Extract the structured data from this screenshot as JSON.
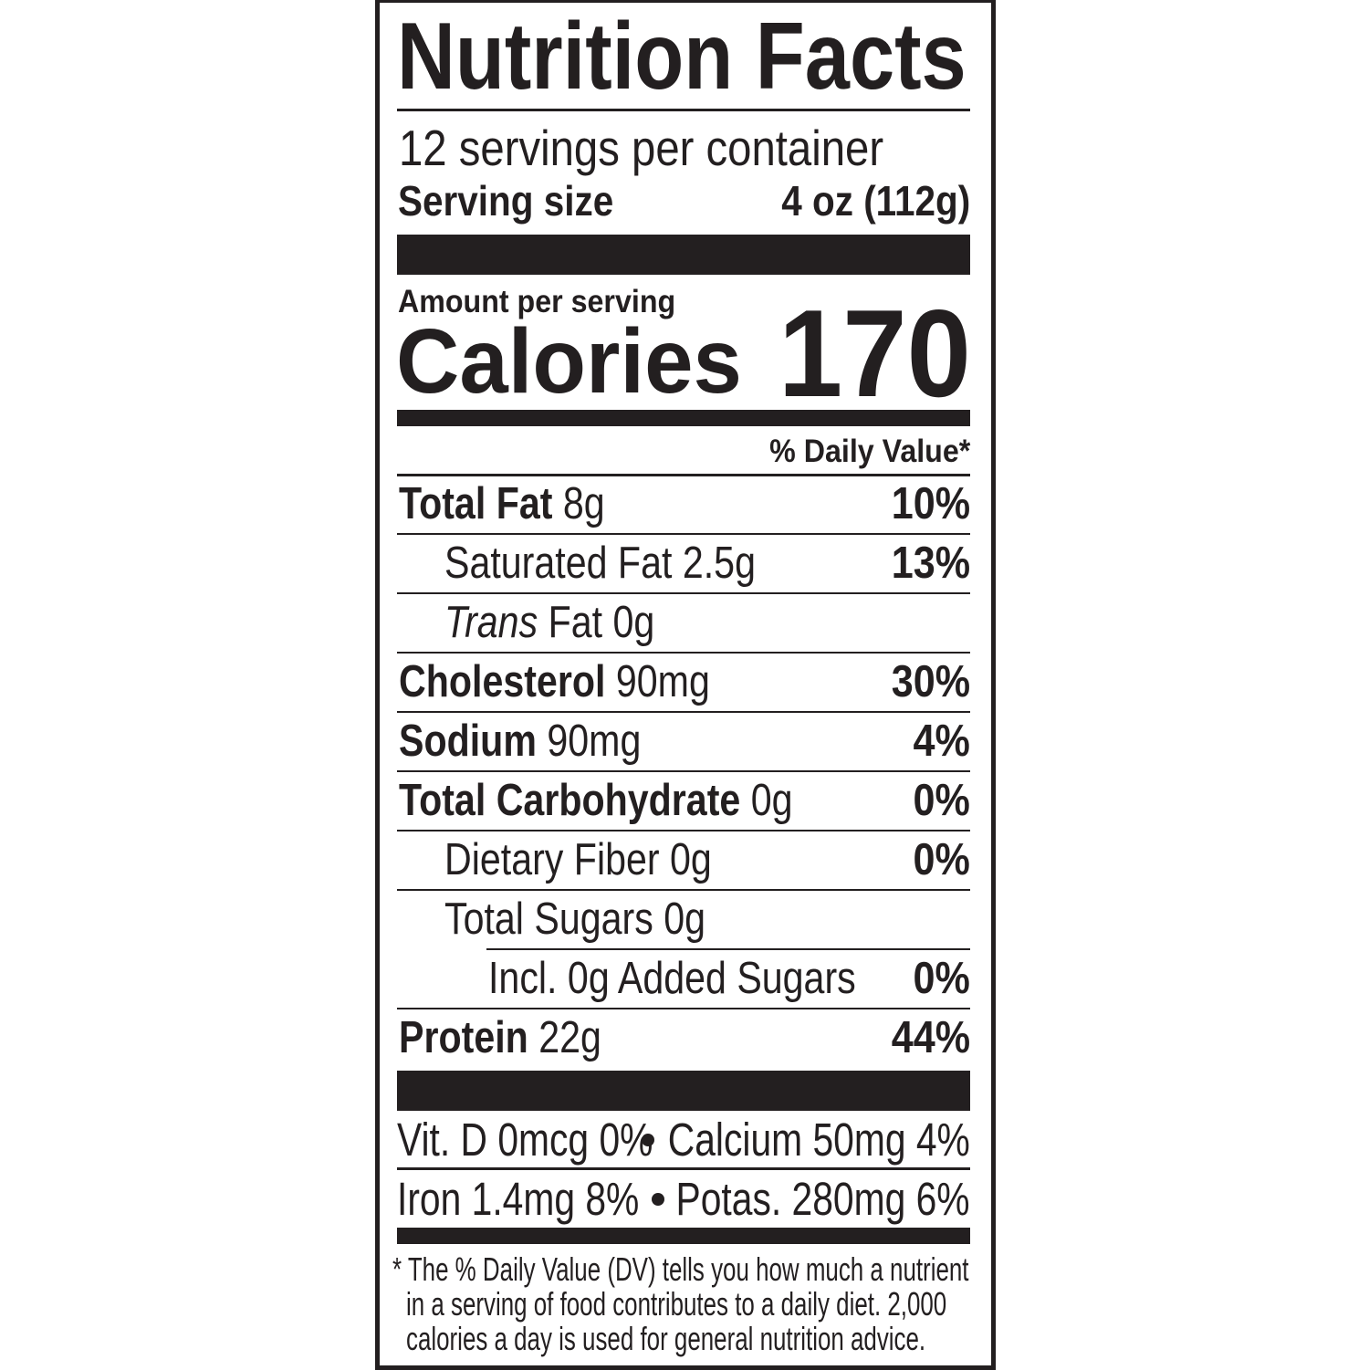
{
  "label": {
    "title": "Nutrition Facts",
    "servings_per_container": "12 servings per container",
    "serving_size_label": "Serving size",
    "serving_size_value": "4 oz (112g)",
    "amount_per_serving": "Amount per serving",
    "calories_label": "Calories",
    "calories_value": "170",
    "daily_value_header": "% Daily Value*"
  },
  "nutrients": [
    {
      "level": 0,
      "label": "Total Fat",
      "amount": "8g",
      "dv": "10%"
    },
    {
      "level": 1,
      "label": "Saturated Fat",
      "amount": "2.5g",
      "dv": "13%"
    },
    {
      "level": 1,
      "label_italic": "Trans",
      "label": "Fat",
      "amount": "0g",
      "dv": ""
    },
    {
      "level": 0,
      "label": "Cholesterol",
      "amount": "90mg",
      "dv": "30%"
    },
    {
      "level": 0,
      "label": "Sodium",
      "amount": "90mg",
      "dv": "4%"
    },
    {
      "level": 0,
      "label": "Total Carbohydrate",
      "amount": "0g",
      "dv": "0%"
    },
    {
      "level": 1,
      "label": "Dietary Fiber",
      "amount": "0g",
      "dv": "0%"
    },
    {
      "level": 1,
      "label": "Total Sugars",
      "amount": "0g",
      "dv": ""
    },
    {
      "level": 2,
      "label": "Incl. 0g Added Sugars",
      "amount": "",
      "dv": "0%"
    },
    {
      "level": 0,
      "label": "Protein",
      "amount": "22g",
      "dv": "44%"
    }
  ],
  "vitamins": {
    "vitamin_d": "Vit. D 0mcg 0%",
    "calcium": "Calcium 50mg 4%",
    "iron": "Iron 1.4mg 8%",
    "potassium": "Potas. 280mg 6%"
  },
  "footnote": {
    "line1": "* The % Daily Value (DV) tells you how much a nutrient",
    "line2": "in a serving of food contributes to a daily diet. 2,000",
    "line3": "calories a day is used for general nutrition advice."
  },
  "colors": {
    "ink": "#231f20",
    "background": "#ffffff"
  }
}
